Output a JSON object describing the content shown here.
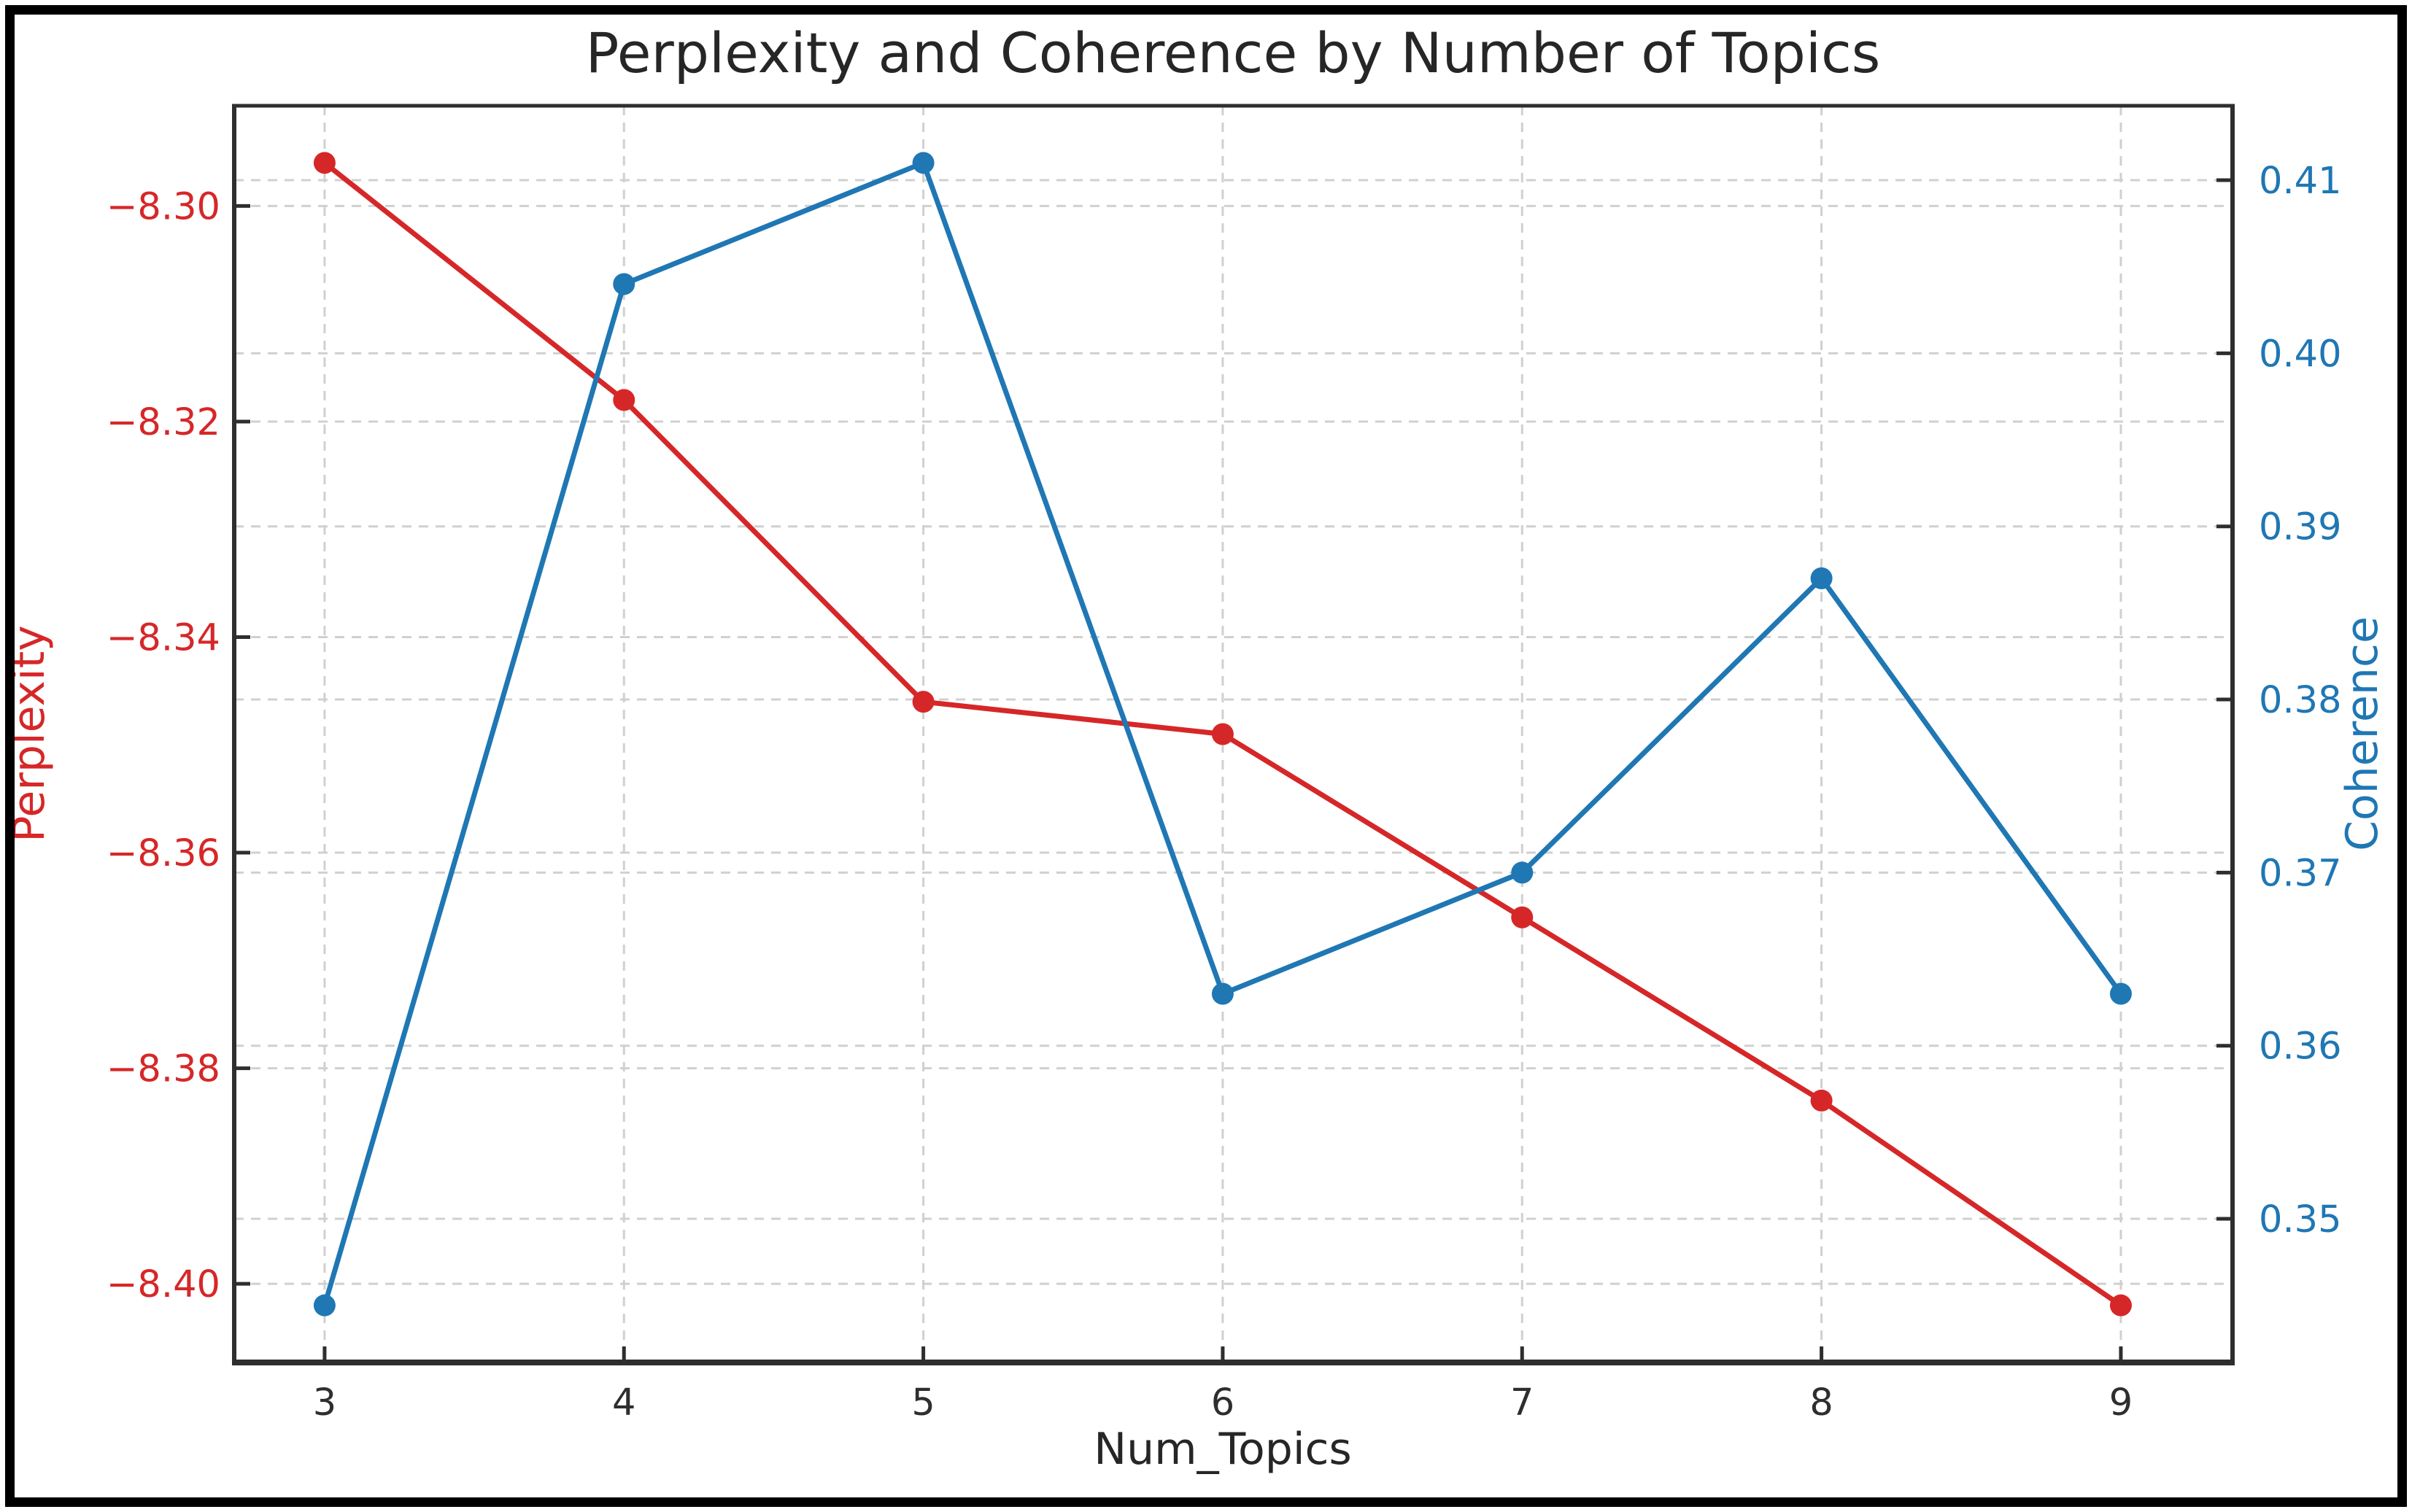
{
  "figure": {
    "title": "Perplexity and Coherence by Number of Topics"
  },
  "chart_data": {
    "type": "line",
    "title": "Perplexity and Coherence by Number of Topics",
    "xlabel": "Num_Topics",
    "x": [
      3,
      4,
      5,
      6,
      7,
      8,
      9
    ],
    "x_ticks": [
      3,
      4,
      5,
      6,
      7,
      8,
      9
    ],
    "xlim": [
      2.698,
      9.373
    ],
    "grid": true,
    "legend": false,
    "series": [
      {
        "name": "Perplexity",
        "axis": "left",
        "color": "#d62728",
        "values": [
          -8.296,
          -8.318,
          -8.346,
          -8.349,
          -8.366,
          -8.383,
          -8.402
        ]
      },
      {
        "name": "Coherence",
        "axis": "right",
        "color": "#1f77b4",
        "values": [
          0.345,
          0.404,
          0.411,
          0.363,
          0.37,
          0.387,
          0.363
        ]
      }
    ],
    "left_axis": {
      "label": "Perplexity",
      "color": "#d62728",
      "ticks": [
        -8.4,
        -8.38,
        -8.36,
        -8.34,
        -8.32,
        -8.3
      ],
      "range": [
        -8.4073,
        -8.2907
      ],
      "decimals": 2
    },
    "right_axis": {
      "label": "Coherence",
      "color": "#1f77b4",
      "ticks": [
        0.35,
        0.36,
        0.37,
        0.38,
        0.39,
        0.4,
        0.41
      ],
      "range": [
        0.3417,
        0.4143
      ],
      "decimals": 2
    }
  },
  "colors": {
    "background": "#ffffff",
    "frame_border": "#000000",
    "gridline": "#d0d0d0",
    "spine": "#2e2e2e",
    "tick": "#2e2e2e",
    "x_tick_label": "#2e2e2e",
    "title_text": "#262626",
    "perplexity_red": "#d62728",
    "coherence_blue": "#1f77b4"
  }
}
